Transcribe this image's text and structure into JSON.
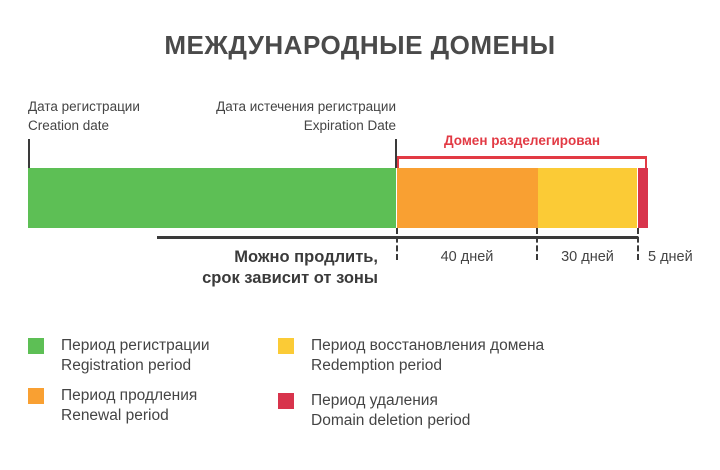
{
  "title": "МЕЖДУНАРОДНЫЕ ДОМЕНЫ",
  "creation": {
    "ru": "Дата регистрации",
    "en": "Creation date"
  },
  "expiration": {
    "ru": "Дата истечения регистрации",
    "en": "Expiration Date"
  },
  "undelegated_label": "Домен разделегирован",
  "renew_label": {
    "line1": "Можно продлить,",
    "line2": "срок зависит от зоны"
  },
  "periods": [
    {
      "key": "registration",
      "color": "#5dbf55",
      "duration": ""
    },
    {
      "key": "renewal",
      "color": "#f9a032",
      "duration": "40 дней"
    },
    {
      "key": "redemption",
      "color": "#fbcb36",
      "duration": "30 дней"
    },
    {
      "key": "deletion",
      "color": "#d8344c",
      "duration": "5 дней"
    }
  ],
  "legend": [
    {
      "color": "#5dbf55",
      "ru": "Период регистрации",
      "en": "Registration period"
    },
    {
      "color": "#f9a032",
      "ru": "Период продления",
      "en": "Renewal period"
    },
    {
      "color": "#fbcb36",
      "ru": "Период восстановления домена",
      "en": "Redemption period"
    },
    {
      "color": "#d8344c",
      "ru": "Период удаления",
      "en": "Domain deletion period"
    }
  ]
}
